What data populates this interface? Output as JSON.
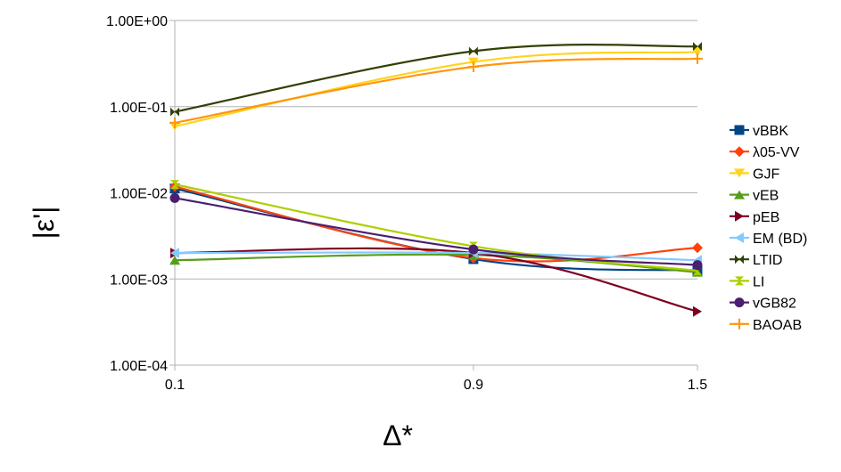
{
  "chart_data": {
    "type": "line",
    "title": "",
    "xlabel": "Δ*",
    "ylabel": "|ε'|",
    "y_scale": "log",
    "ylim": [
      0.0001,
      1
    ],
    "x": [
      0.1,
      0.9,
      1.5
    ],
    "x_tick_labels": [
      "0.1",
      "0.9",
      "1.5"
    ],
    "y_ticks": [
      1,
      0.1,
      0.01,
      0.001,
      0.0001
    ],
    "y_tick_labels": [
      "1.00E+00",
      "1.00E-01",
      "1.00E-02",
      "1.00E-03",
      "1.00E-04"
    ],
    "grid": "horizontal major",
    "legend_position": "right",
    "series": [
      {
        "name": "vBBK",
        "values": [
          0.0112,
          0.0017,
          0.00125
        ],
        "color": "#004586",
        "marker": "square"
      },
      {
        "name": "λ05-VV",
        "values": [
          0.0118,
          0.00175,
          0.0023
        ],
        "color": "#ff420e",
        "marker": "diamond"
      },
      {
        "name": "GJF",
        "values": [
          0.059,
          0.33,
          0.43
        ],
        "color": "#ffd320",
        "marker": "triangle-down"
      },
      {
        "name": "vEB",
        "values": [
          0.00165,
          0.0019,
          0.0012
        ],
        "color": "#579d1c",
        "marker": "triangle-up"
      },
      {
        "name": "pEB",
        "values": [
          0.002,
          0.002,
          0.00042
        ],
        "color": "#7e0021",
        "marker": "triangle-right"
      },
      {
        "name": "EM (BD)",
        "values": [
          0.002,
          0.002,
          0.00165
        ],
        "color": "#83caff",
        "marker": "triangle-left"
      },
      {
        "name": "LTID",
        "values": [
          0.087,
          0.44,
          0.5
        ],
        "color": "#314004",
        "marker": "bowtie"
      },
      {
        "name": "LI",
        "values": [
          0.0125,
          0.0024,
          0.00125
        ],
        "color": "#aecf00",
        "marker": "hourglass"
      },
      {
        "name": "vGB82",
        "values": [
          0.0087,
          0.0022,
          0.00145
        ],
        "color": "#4b1f6f",
        "marker": "circle"
      },
      {
        "name": "BAOAB",
        "values": [
          0.065,
          0.29,
          0.36
        ],
        "color": "#ff950e",
        "marker": "plus"
      }
    ]
  }
}
